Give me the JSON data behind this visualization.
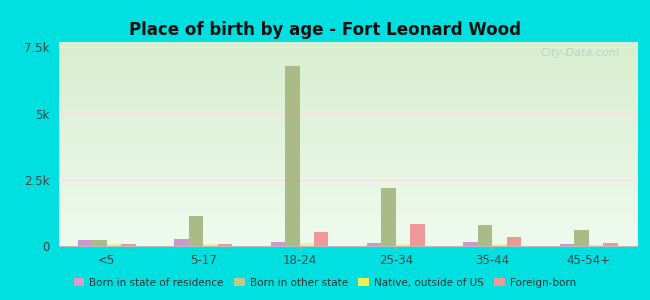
{
  "title": "Place of birth by age - Fort Leonard Wood",
  "background_color": "#00e0e0",
  "plot_bg_top": "#d8eece",
  "plot_bg_bottom": "#eefaee",
  "categories": [
    "<5",
    "5-17",
    "18-24",
    "25-34",
    "35-44",
    "45-54+"
  ],
  "series": {
    "Born in state of residence": {
      "color": "#cc99cc",
      "values": [
        220,
        260,
        160,
        130,
        140,
        60
      ]
    },
    "Born in other state": {
      "color": "#aabb88",
      "values": [
        220,
        1150,
        6800,
        2200,
        800,
        620
      ]
    },
    "Native, outside of US": {
      "color": "#eeee99",
      "values": [
        60,
        60,
        110,
        60,
        60,
        40
      ]
    },
    "Foreign-born": {
      "color": "#ee9999",
      "values": [
        90,
        90,
        530,
        820,
        330,
        110
      ]
    }
  },
  "ylim": [
    0,
    7700
  ],
  "yticks": [
    0,
    2500,
    5000,
    7500
  ],
  "ytick_labels": [
    "0",
    "2.5k",
    "5k",
    "7.5k"
  ],
  "bar_width": 0.15,
  "watermark": "City-Data.com",
  "legend_colors": [
    "#dd99cc",
    "#bbcc88",
    "#eeee55",
    "#ee9999"
  ],
  "legend_labels": [
    "Born in state of residence",
    "Born in other state",
    "Native, outside of US",
    "Foreign-born"
  ]
}
